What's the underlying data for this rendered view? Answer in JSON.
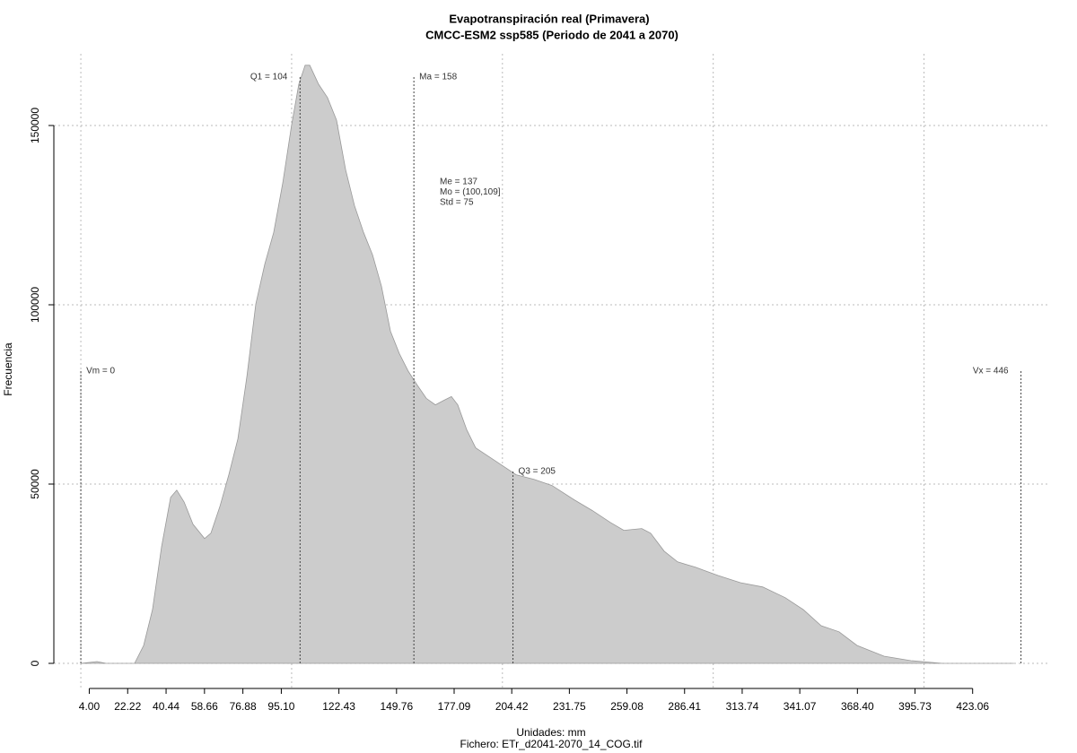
{
  "chart_data": {
    "type": "area",
    "title": "Evapotranspiración real (Primavera)",
    "subtitle": "CMCC-ESM2 ssp585 (Periodo de 2041 a 2070)",
    "x_label": "Unidades: mm",
    "caption": "Fichero: ETr_d2041-2070_14_COG.tif",
    "y_label": "Frecuencia",
    "color": "#cccccc",
    "x": [
      0,
      7.7,
      12,
      25.5,
      29.8,
      34,
      38.3,
      42.6,
      45.5,
      49,
      53.2,
      58.7,
      61.7,
      66,
      70.2,
      74.5,
      78.8,
      83,
      87.3,
      91.5,
      95.8,
      100,
      103.4,
      106.4,
      108.6,
      112.8,
      117,
      121.3,
      125.6,
      129.8,
      134.1,
      138.4,
      142.6,
      146.9,
      151.1,
      155.4,
      159.6,
      163.9,
      168.2,
      172.4,
      175.8,
      178.8,
      183.1,
      187.3,
      193.7,
      200.1,
      206.5,
      215,
      223.5,
      234.1,
      242.7,
      251.2,
      257.6,
      266.1,
      270.3,
      276.7,
      283.1,
      291.6,
      302.3,
      312.9,
      323.5,
      334.2,
      342.7,
      351.2,
      359.7,
      368.2,
      381,
      393.8,
      408.7,
      442.7
    ],
    "values": [
      0,
      500,
      0,
      0,
      5000,
      15000,
      32500,
      46300,
      48300,
      45000,
      38800,
      34800,
      36300,
      43800,
      52600,
      62600,
      80100,
      100200,
      111400,
      120200,
      134000,
      150200,
      161500,
      166800,
      166800,
      161500,
      157800,
      151500,
      137700,
      127700,
      120200,
      113900,
      105200,
      92600,
      86400,
      81400,
      77600,
      73900,
      72100,
      73400,
      74400,
      72100,
      65100,
      60100,
      57600,
      55100,
      52600,
      51300,
      49600,
      45600,
      42600,
      39300,
      37100,
      37600,
      36300,
      31300,
      28300,
      26800,
      24500,
      22500,
      21300,
      18300,
      15000,
      10500,
      8800,
      5000,
      2000,
      750,
      0,
      0
    ],
    "xlim": [
      -12.8,
      459.8
    ],
    "ylim": [
      -7000,
      170000
    ],
    "xticks": [
      {
        "value": 4,
        "label": "4.00"
      },
      22.22,
      40.44,
      58.66,
      76.88,
      {
        "value": 95.1,
        "label": "95.10"
      },
      122.43,
      149.76,
      177.09,
      204.42,
      231.75,
      259.08,
      286.41,
      313.74,
      341.07,
      {
        "value": 368.4,
        "label": "368.40"
      },
      395.73,
      423.06
    ],
    "yticks": [
      0,
      50000,
      100000,
      150000
    ],
    "xgrid": [
      0,
      100,
      200,
      300,
      400
    ],
    "grid": true,
    "markers": [
      {
        "label": "Vm = 0",
        "x": 0,
        "y": 82000,
        "side": "right"
      },
      {
        "label": "Q1 = 104",
        "x": 104,
        "y": 164000,
        "side": "left"
      },
      {
        "label": "Ma = 158",
        "x": 158,
        "y": 164000,
        "side": "right"
      },
      {
        "label": "Q3 = 205",
        "x": 205,
        "y": 54000,
        "side": "right"
      },
      {
        "label": "Vx = 446",
        "x": 446,
        "y": 82000,
        "side": "left"
      }
    ],
    "stats": [
      "Me = 137",
      "Mo = (100,109]",
      "Std = 75"
    ]
  }
}
